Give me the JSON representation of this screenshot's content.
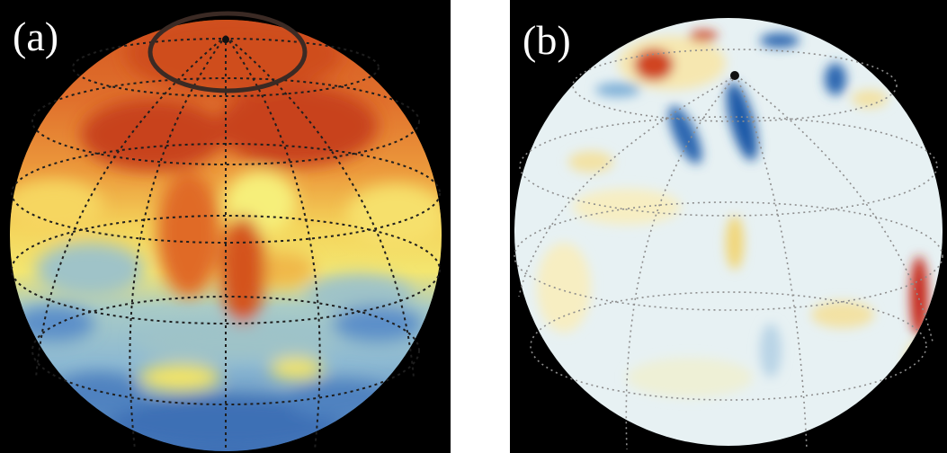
{
  "panels": [
    {
      "label": "(a)"
    },
    {
      "label": "(b)"
    }
  ],
  "colors": {
    "background": "#000000",
    "page": "#ffffff",
    "grid": "#222222",
    "panel_a_palette": [
      "#2e5fa8",
      "#5b8fc9",
      "#9fc3c8",
      "#f4e566",
      "#f3c34a",
      "#e98a3a",
      "#cc4a1e"
    ],
    "panel_b_palette": [
      "#1f5aa8",
      "#7fb0d8",
      "#e6f1f4",
      "#f7eec2",
      "#f1b24a",
      "#c62b1a"
    ]
  }
}
